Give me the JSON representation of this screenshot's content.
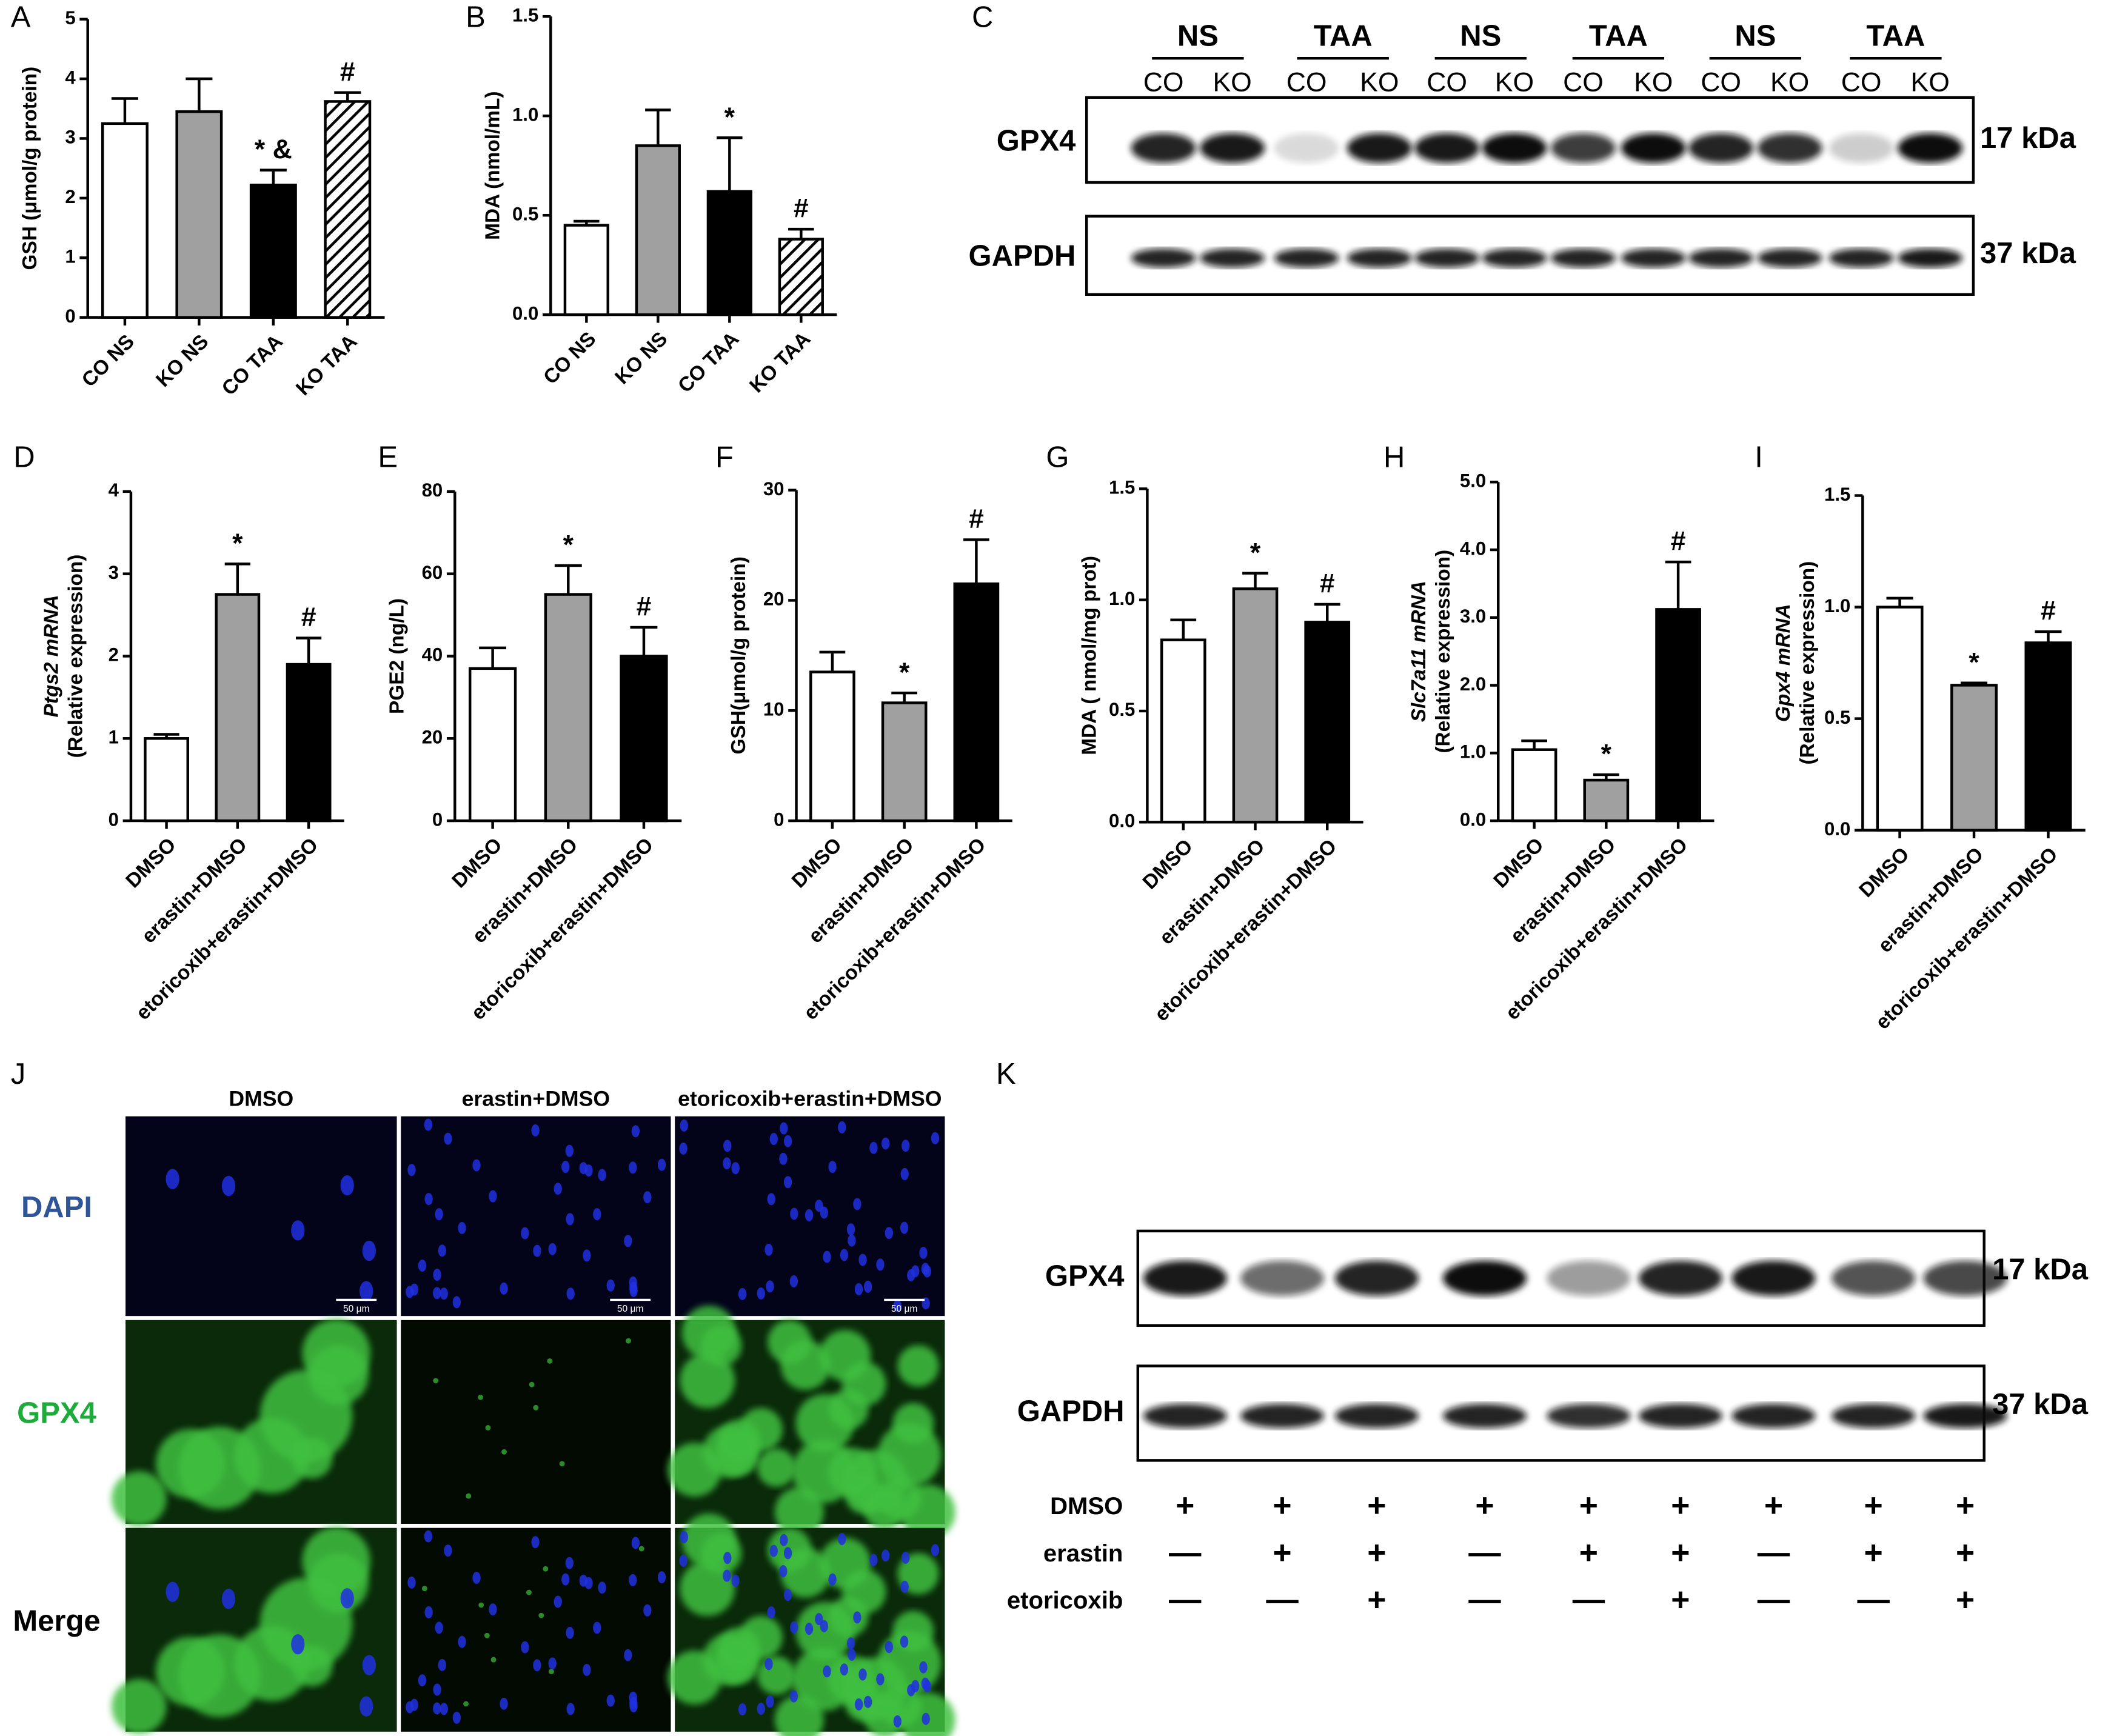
{
  "chart_data": [
    {
      "type": "bar",
      "label": "A",
      "ylabel": [
        "GSH (μmol/g protein)"
      ],
      "categories": [
        "CO NS",
        "KO NS",
        "CO TAA",
        "KO TAA"
      ],
      "values": [
        3.25,
        3.45,
        2.22,
        3.62
      ],
      "errors": [
        0.42,
        0.55,
        0.25,
        0.15
      ],
      "annotations": [
        null,
        null,
        "* &",
        "#"
      ],
      "colors": [
        "#ffffff",
        "#a0a0a0",
        "#000000",
        "#ffffff"
      ],
      "hatch": [
        false,
        false,
        false,
        true
      ],
      "ylim": [
        0,
        5
      ],
      "yticks": [
        0,
        1,
        2,
        3,
        4,
        5
      ]
    },
    {
      "type": "bar",
      "label": "B",
      "ylabel": [
        "MDA (nmol/mL)"
      ],
      "categories": [
        "CO NS",
        "KO NS",
        "CO TAA",
        "KO TAA"
      ],
      "values": [
        0.45,
        0.85,
        0.62,
        0.38
      ],
      "errors": [
        0.02,
        0.18,
        0.27,
        0.05
      ],
      "annotations": [
        null,
        null,
        "*",
        "#"
      ],
      "colors": [
        "#ffffff",
        "#a0a0a0",
        "#000000",
        "#ffffff"
      ],
      "hatch": [
        false,
        false,
        false,
        true
      ],
      "ylim": [
        0,
        1.5
      ],
      "yticks": [
        {
          "value": 0,
          "label": "0.0"
        },
        0.5,
        {
          "value": 1,
          "label": "1.0"
        },
        1.5
      ]
    },
    {
      "type": "bar",
      "label": "D",
      "ylabel": [
        "Ptgs2 mRNA",
        "(Relative expression)"
      ],
      "italic_first_word": true,
      "categories": [
        "DMSO",
        "erastin+DMSO",
        "etoricoxib+erastin+DMSO"
      ],
      "values": [
        1.0,
        2.75,
        1.9
      ],
      "errors": [
        0.05,
        0.37,
        0.32
      ],
      "annotations": [
        null,
        "*",
        "#"
      ],
      "colors": [
        "#ffffff",
        "#a0a0a0",
        "#000000"
      ],
      "ylim": [
        0,
        4
      ],
      "yticks": [
        0,
        1,
        2,
        3,
        4
      ]
    },
    {
      "type": "bar",
      "label": "E",
      "ylabel": [
        "PGE2 (ng/L)"
      ],
      "categories": [
        "DMSO",
        "erastin+DMSO",
        "etoricoxib+erastin+DMSO"
      ],
      "values": [
        37,
        55,
        40
      ],
      "errors": [
        5,
        7,
        7
      ],
      "annotations": [
        null,
        "*",
        "#"
      ],
      "colors": [
        "#ffffff",
        "#a0a0a0",
        "#000000"
      ],
      "ylim": [
        0,
        80
      ],
      "yticks": [
        0,
        20,
        40,
        60,
        80
      ]
    },
    {
      "type": "bar",
      "label": "F",
      "ylabel": [
        "GSH(μmol/g protein)"
      ],
      "categories": [
        "DMSO",
        "erastin+DMSO",
        "etoricoxib+erastin+DMSO"
      ],
      "values": [
        13.5,
        10.7,
        21.5
      ],
      "errors": [
        1.8,
        0.9,
        4
      ],
      "annotations": [
        null,
        "*",
        "#"
      ],
      "colors": [
        "#ffffff",
        "#a0a0a0",
        "#000000"
      ],
      "ylim": [
        0,
        30
      ],
      "yticks": [
        0,
        10,
        20,
        30
      ]
    },
    {
      "type": "bar",
      "label": "G",
      "ylabel": [
        "MDA ( nmol/mg prot)"
      ],
      "categories": [
        "DMSO",
        "erastin+DMSO",
        "etoricoxib+erastin+DMSO"
      ],
      "values": [
        0.82,
        1.05,
        0.9
      ],
      "errors": [
        0.09,
        0.07,
        0.08
      ],
      "annotations": [
        null,
        "*",
        "#"
      ],
      "colors": [
        "#ffffff",
        "#a0a0a0",
        "#000000"
      ],
      "ylim": [
        0,
        1.5
      ],
      "yticks": [
        {
          "value": 0,
          "label": "0.0"
        },
        0.5,
        {
          "value": 1,
          "label": "1.0"
        },
        1.5
      ]
    },
    {
      "type": "bar",
      "label": "H",
      "ylabel": [
        "Slc7a11 mRNA",
        "(Relative expression)"
      ],
      "italic_first_word": true,
      "categories": [
        "DMSO",
        "erastin+DMSO",
        "etoricoxib+erastin+DMSO"
      ],
      "values": [
        1.05,
        0.6,
        3.12
      ],
      "errors": [
        0.13,
        0.08,
        0.7
      ],
      "annotations": [
        null,
        "*",
        "#"
      ],
      "colors": [
        "#ffffff",
        "#a0a0a0",
        "#000000"
      ],
      "ylim": [
        0,
        5
      ],
      "yticks": [
        {
          "value": 0,
          "label": "0.0"
        },
        {
          "value": 1,
          "label": "1.0"
        },
        {
          "value": 2,
          "label": "2.0"
        },
        {
          "value": 3,
          "label": "3.0"
        },
        {
          "value": 4,
          "label": "4.0"
        },
        {
          "value": 5,
          "label": "5.0"
        }
      ]
    },
    {
      "type": "bar",
      "label": "I",
      "ylabel": [
        "Gpx4 mRNA",
        "(Relative expression)"
      ],
      "italic_first_word": true,
      "categories": [
        "DMSO",
        "erastin+DMSO",
        "etoricoxib+erastin+DMSO"
      ],
      "values": [
        1.0,
        0.65,
        0.84
      ],
      "errors": [
        0.04,
        0.01,
        0.05
      ],
      "annotations": [
        null,
        "*",
        "#"
      ],
      "colors": [
        "#ffffff",
        "#a0a0a0",
        "#000000"
      ],
      "ylim": [
        0,
        1.5
      ],
      "yticks": [
        {
          "value": 0,
          "label": "0.0"
        },
        0.5,
        {
          "value": 1,
          "label": "1.0"
        },
        1.5
      ]
    }
  ],
  "blot_c": {
    "label": "C",
    "groups": [
      "NS",
      "TAA",
      "NS",
      "TAA",
      "NS",
      "TAA"
    ],
    "lanes": [
      "CO",
      "KO",
      "CO",
      "KO",
      "CO",
      "KO",
      "CO",
      "KO",
      "CO",
      "KO",
      "CO",
      "KO"
    ],
    "rows": [
      {
        "protein": "GPX4",
        "size": "17 kDa"
      },
      {
        "protein": "GAPDH",
        "size": "37 kDa"
      }
    ]
  },
  "micrograph_j": {
    "label": "J",
    "columns": [
      "DMSO",
      "erastin+DMSO",
      "etoricoxib+erastin+DMSO"
    ],
    "rows": [
      "DAPI",
      "GPX4",
      "Merge"
    ],
    "scale_bar": "50 μm"
  },
  "blot_k": {
    "label": "K",
    "rows": [
      {
        "protein": "GPX4",
        "size": "17 kDa"
      },
      {
        "protein": "GAPDH",
        "size": "37 kDa"
      }
    ],
    "treatments": [
      {
        "name": "DMSO",
        "signs": [
          "+",
          "+",
          "+",
          "+",
          "+",
          "+",
          "+",
          "+",
          "+"
        ]
      },
      {
        "name": "erastin",
        "signs": [
          "—",
          "+",
          "+",
          "—",
          "+",
          "+",
          "—",
          "+",
          "+"
        ]
      },
      {
        "name": "etoricoxib",
        "signs": [
          "—",
          "—",
          "+",
          "—",
          "—",
          "+",
          "—",
          "—",
          "+"
        ]
      }
    ]
  }
}
